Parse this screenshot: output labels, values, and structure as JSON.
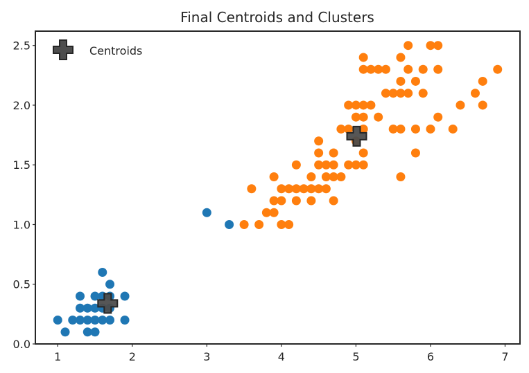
{
  "chart_data": {
    "type": "scatter",
    "title": "Final Centroids and Clusters",
    "xlabel": "",
    "ylabel": "",
    "xlim": [
      0.7,
      7.2
    ],
    "ylim": [
      0.0,
      2.62
    ],
    "xticks": [
      1,
      2,
      3,
      4,
      5,
      6,
      7
    ],
    "yticks": [
      0.0,
      0.5,
      1.0,
      1.5,
      2.0,
      2.5
    ],
    "ytick_labels": [
      "0.0",
      "0.5",
      "1.0",
      "1.5",
      "2.0",
      "2.5"
    ],
    "grid": false,
    "legend": {
      "position": "top-left",
      "entries": [
        "Centroids"
      ]
    },
    "colors": {
      "cluster_0": "#1f77b4",
      "cluster_1": "#ff7f0e",
      "centroid": "#4d4d4d"
    },
    "series": [
      {
        "cluster": 0,
        "points": [
          [
            1.0,
            0.2
          ],
          [
            1.1,
            0.1
          ],
          [
            1.2,
            0.2
          ],
          [
            1.3,
            0.2
          ],
          [
            1.3,
            0.3
          ],
          [
            1.3,
            0.4
          ],
          [
            1.4,
            0.1
          ],
          [
            1.4,
            0.2
          ],
          [
            1.4,
            0.3
          ],
          [
            1.5,
            0.1
          ],
          [
            1.5,
            0.2
          ],
          [
            1.5,
            0.4
          ],
          [
            1.6,
            0.2
          ],
          [
            1.6,
            0.4
          ],
          [
            1.6,
            0.6
          ],
          [
            1.7,
            0.2
          ],
          [
            1.7,
            0.3
          ],
          [
            1.7,
            0.4
          ],
          [
            1.7,
            0.5
          ],
          [
            1.9,
            0.2
          ],
          [
            1.9,
            0.4
          ],
          [
            1.5,
            0.3
          ],
          [
            1.6,
            0.3
          ],
          [
            3.0,
            1.1
          ],
          [
            3.3,
            1.0
          ]
        ]
      },
      {
        "cluster": 1,
        "points": [
          [
            3.5,
            1.0
          ],
          [
            3.6,
            1.3
          ],
          [
            3.7,
            1.0
          ],
          [
            3.8,
            1.1
          ],
          [
            3.9,
            1.1
          ],
          [
            3.9,
            1.2
          ],
          [
            3.9,
            1.4
          ],
          [
            4.0,
            1.0
          ],
          [
            4.0,
            1.2
          ],
          [
            4.0,
            1.3
          ],
          [
            4.1,
            1.0
          ],
          [
            4.1,
            1.3
          ],
          [
            4.2,
            1.2
          ],
          [
            4.2,
            1.3
          ],
          [
            4.2,
            1.5
          ],
          [
            4.3,
            1.3
          ],
          [
            4.4,
            1.2
          ],
          [
            4.4,
            1.3
          ],
          [
            4.4,
            1.4
          ],
          [
            4.5,
            1.3
          ],
          [
            4.5,
            1.5
          ],
          [
            4.5,
            1.6
          ],
          [
            4.5,
            1.7
          ],
          [
            4.6,
            1.3
          ],
          [
            4.6,
            1.4
          ],
          [
            4.6,
            1.5
          ],
          [
            4.7,
            1.2
          ],
          [
            4.7,
            1.4
          ],
          [
            4.7,
            1.5
          ],
          [
            4.7,
            1.6
          ],
          [
            4.8,
            1.4
          ],
          [
            4.8,
            1.8
          ],
          [
            4.9,
            1.5
          ],
          [
            4.9,
            1.8
          ],
          [
            4.9,
            2.0
          ],
          [
            5.0,
            1.5
          ],
          [
            5.0,
            1.7
          ],
          [
            5.0,
            1.9
          ],
          [
            5.0,
            2.0
          ],
          [
            5.1,
            1.5
          ],
          [
            5.1,
            1.6
          ],
          [
            5.1,
            1.8
          ],
          [
            5.1,
            1.9
          ],
          [
            5.1,
            2.0
          ],
          [
            5.1,
            2.3
          ],
          [
            5.1,
            2.4
          ],
          [
            5.2,
            2.0
          ],
          [
            5.2,
            2.3
          ],
          [
            5.3,
            1.9
          ],
          [
            5.3,
            2.3
          ],
          [
            5.4,
            2.1
          ],
          [
            5.4,
            2.3
          ],
          [
            5.5,
            1.8
          ],
          [
            5.5,
            2.1
          ],
          [
            5.6,
            1.4
          ],
          [
            5.6,
            1.8
          ],
          [
            5.6,
            2.1
          ],
          [
            5.6,
            2.2
          ],
          [
            5.6,
            2.4
          ],
          [
            5.7,
            2.1
          ],
          [
            5.7,
            2.3
          ],
          [
            5.7,
            2.5
          ],
          [
            5.8,
            1.6
          ],
          [
            5.8,
            1.8
          ],
          [
            5.8,
            2.2
          ],
          [
            5.9,
            2.1
          ],
          [
            5.9,
            2.3
          ],
          [
            6.0,
            1.8
          ],
          [
            6.0,
            2.5
          ],
          [
            6.1,
            1.9
          ],
          [
            6.1,
            2.3
          ],
          [
            6.1,
            2.5
          ],
          [
            6.3,
            1.8
          ],
          [
            6.4,
            2.0
          ],
          [
            6.6,
            2.1
          ],
          [
            6.7,
            2.0
          ],
          [
            6.7,
            2.2
          ],
          [
            6.9,
            2.3
          ]
        ]
      }
    ],
    "centroids": [
      [
        1.67,
        0.34
      ],
      [
        5.01,
        1.74
      ]
    ]
  }
}
